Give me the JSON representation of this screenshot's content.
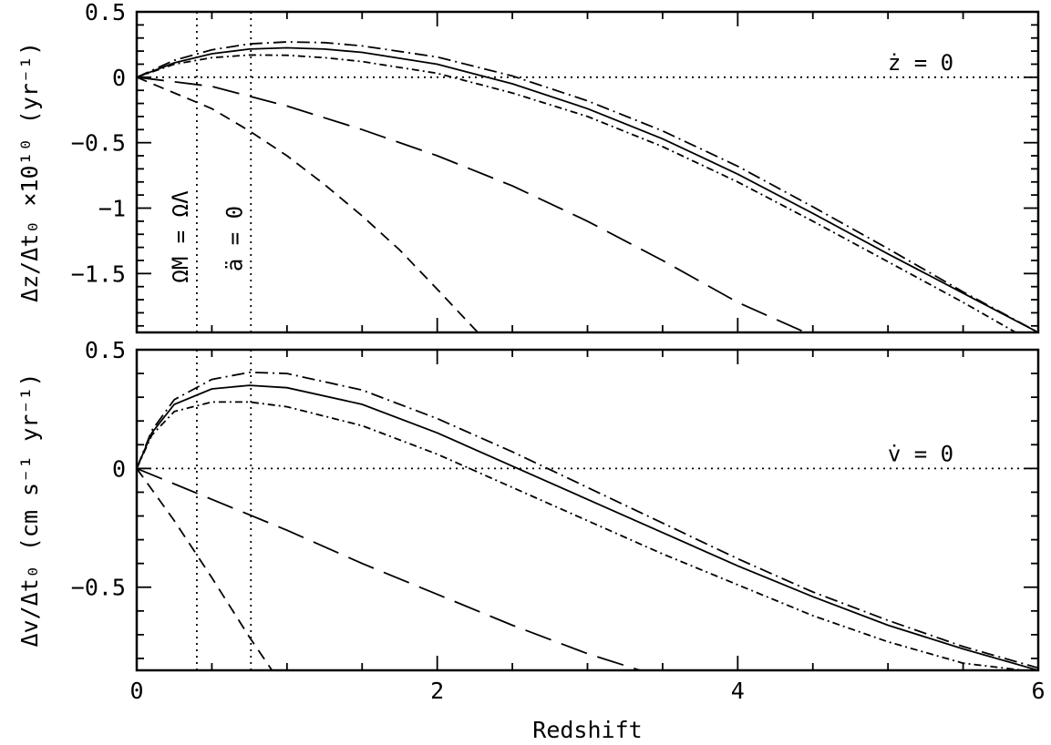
{
  "chart_data": [
    {
      "type": "line",
      "panel": "top",
      "title": "",
      "xlabel": "",
      "ylabel": "Δz/Δt₀ ×10¹⁰ (yr⁻¹)",
      "xlim": [
        0,
        6
      ],
      "ylim": [
        -1.95,
        0.5
      ],
      "x_ticks": [
        0,
        2,
        4,
        6
      ],
      "y_ticks": [
        0.5,
        0,
        -0.5,
        -1,
        -1.5
      ],
      "y_tick_labels": [
        "0.5",
        "0",
        "−0.5",
        "−1",
        "−1.5"
      ],
      "grid": false,
      "annotations": {
        "zero_label": "ż = 0",
        "equality_label": "ΩM = ΩΛ",
        "equality_x": 0.4,
        "acceleration_label": "ä = 0",
        "acceleration_x": 0.76
      },
      "series": [
        {
          "style": "solid",
          "x": [
            0,
            0.25,
            0.5,
            0.75,
            1.0,
            1.25,
            1.5,
            2.0,
            2.5,
            3.0,
            3.5,
            4.0,
            4.5,
            5.0,
            5.5,
            6.0
          ],
          "y": [
            0,
            0.11,
            0.18,
            0.215,
            0.225,
            0.215,
            0.19,
            0.1,
            -0.05,
            -0.24,
            -0.47,
            -0.74,
            -1.04,
            -1.35,
            -1.65,
            -1.95
          ]
        },
        {
          "style": "dash-dot",
          "x": [
            0,
            0.25,
            0.5,
            0.75,
            1.0,
            1.25,
            1.5,
            2.0,
            2.5,
            3.0,
            3.5,
            4.0,
            4.5,
            5.0,
            5.5,
            6.0
          ],
          "y": [
            0,
            0.13,
            0.21,
            0.255,
            0.27,
            0.265,
            0.24,
            0.155,
            0.01,
            -0.18,
            -0.41,
            -0.68,
            -0.99,
            -1.31,
            -1.64,
            -1.95
          ]
        },
        {
          "style": "dash-dot-short",
          "x": [
            0,
            0.25,
            0.5,
            0.75,
            1.0,
            1.25,
            1.5,
            2.0,
            2.5,
            3.0,
            3.5,
            4.0,
            4.5,
            5.0,
            5.5,
            5.85
          ],
          "y": [
            0,
            0.1,
            0.15,
            0.17,
            0.168,
            0.15,
            0.12,
            0.03,
            -0.12,
            -0.3,
            -0.53,
            -0.8,
            -1.1,
            -1.41,
            -1.72,
            -1.95
          ]
        },
        {
          "style": "long-dash",
          "x": [
            0,
            0.5,
            1.0,
            1.5,
            2.0,
            2.5,
            3.0,
            3.5,
            4.0,
            4.45
          ],
          "y": [
            0,
            -0.07,
            -0.22,
            -0.4,
            -0.6,
            -0.83,
            -1.1,
            -1.4,
            -1.72,
            -1.95
          ]
        },
        {
          "style": "short-dash",
          "x": [
            0,
            0.5,
            0.75,
            1.0,
            1.25,
            1.5,
            1.75,
            2.0,
            2.27
          ],
          "y": [
            0,
            -0.24,
            -0.41,
            -0.6,
            -0.82,
            -1.06,
            -1.32,
            -1.62,
            -1.95
          ]
        }
      ]
    },
    {
      "type": "line",
      "panel": "bottom",
      "title": "",
      "xlabel": "Redshift",
      "ylabel": "Δv/Δt₀ (cm s⁻¹ yr⁻¹)",
      "xlim": [
        0,
        6
      ],
      "ylim": [
        -0.85,
        0.5
      ],
      "x_ticks": [
        0,
        2,
        4,
        6
      ],
      "x_tick_labels": [
        "0",
        "2",
        "4",
        "6"
      ],
      "y_ticks": [
        0.5,
        0,
        -0.5
      ],
      "y_tick_labels": [
        "0.5",
        "0",
        "−0.5"
      ],
      "grid": false,
      "annotations": {
        "zero_label": "v̇ = 0",
        "equality_x": 0.4,
        "acceleration_x": 0.76
      },
      "series": [
        {
          "style": "solid",
          "x": [
            0,
            0.1,
            0.25,
            0.5,
            0.75,
            1.0,
            1.5,
            2.0,
            2.5,
            3.0,
            3.5,
            4.0,
            4.5,
            5.0,
            5.5,
            6.0
          ],
          "y": [
            0,
            0.15,
            0.27,
            0.335,
            0.35,
            0.34,
            0.27,
            0.15,
            0.01,
            -0.13,
            -0.27,
            -0.41,
            -0.54,
            -0.66,
            -0.76,
            -0.85
          ]
        },
        {
          "style": "dash-dot",
          "x": [
            0,
            0.1,
            0.25,
            0.5,
            0.75,
            1.0,
            1.5,
            2.0,
            2.5,
            3.0,
            3.5,
            4.0,
            4.5,
            5.0,
            5.5,
            6.0
          ],
          "y": [
            0,
            0.16,
            0.29,
            0.375,
            0.405,
            0.4,
            0.33,
            0.21,
            0.07,
            -0.08,
            -0.23,
            -0.38,
            -0.52,
            -0.64,
            -0.75,
            -0.84
          ]
        },
        {
          "style": "dash-dot-short",
          "x": [
            0,
            0.1,
            0.25,
            0.5,
            0.75,
            1.0,
            1.5,
            2.0,
            2.5,
            3.0,
            3.5,
            4.0,
            4.5,
            5.0,
            5.5,
            5.9
          ],
          "y": [
            0,
            0.14,
            0.24,
            0.28,
            0.28,
            0.26,
            0.18,
            0.06,
            -0.08,
            -0.22,
            -0.36,
            -0.49,
            -0.62,
            -0.73,
            -0.82,
            -0.85
          ]
        },
        {
          "style": "long-dash",
          "x": [
            0,
            0.5,
            1.0,
            1.5,
            2.0,
            2.5,
            3.0,
            3.35
          ],
          "y": [
            0,
            -0.13,
            -0.26,
            -0.4,
            -0.53,
            -0.66,
            -0.78,
            -0.85
          ]
        },
        {
          "style": "short-dash",
          "x": [
            0,
            0.25,
            0.5,
            0.75,
            0.9
          ],
          "y": [
            0,
            -0.22,
            -0.46,
            -0.71,
            -0.85
          ]
        }
      ]
    }
  ]
}
